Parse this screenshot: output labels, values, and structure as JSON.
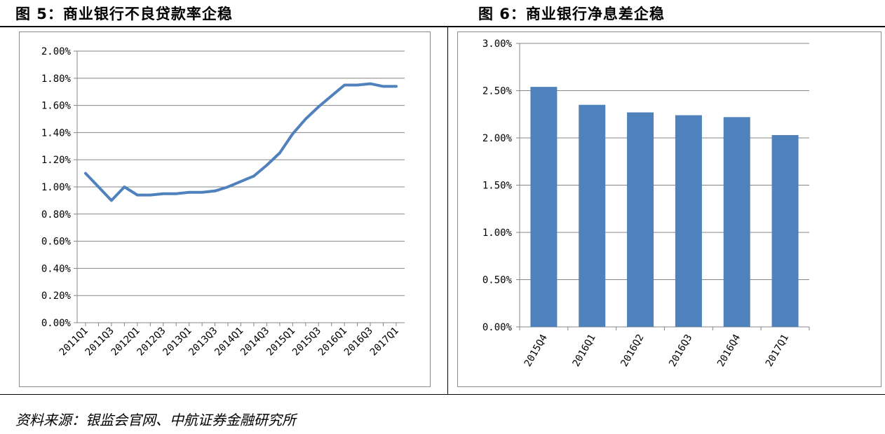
{
  "figures": [
    {
      "title": "图 5：商业银行不良贷款率企稳"
    },
    {
      "title": "图 6：商业银行净息差企稳"
    }
  ],
  "source_note": "资料来源：银监会官网、中航证券金融研究所",
  "colors": {
    "series": "#4f81bd",
    "grid": "#858585",
    "axis": "#858585"
  },
  "chart_data": [
    {
      "type": "line",
      "title": "图 5：商业银行不良贷款率企稳",
      "xlabel": "",
      "ylabel": "",
      "x": [
        "2011Q1",
        "2011Q2",
        "2011Q3",
        "2011Q4",
        "2012Q1",
        "2012Q2",
        "2012Q3",
        "2012Q4",
        "2013Q1",
        "2013Q2",
        "2013Q3",
        "2013Q4",
        "2014Q1",
        "2014Q2",
        "2014Q3",
        "2014Q4",
        "2015Q1",
        "2015Q2",
        "2015Q3",
        "2015Q4",
        "2016Q1",
        "2016Q2",
        "2016Q3",
        "2016Q4",
        "2017Q1"
      ],
      "tick_labels": [
        "2011Q1",
        "2011Q3",
        "2012Q1",
        "2012Q3",
        "2013Q1",
        "2013Q3",
        "2014Q1",
        "2014Q3",
        "2015Q1",
        "2015Q3",
        "2016Q1",
        "2016Q3",
        "2017Q1"
      ],
      "series": [
        {
          "values": [
            1.1,
            1.0,
            0.9,
            1.0,
            0.94,
            0.94,
            0.95,
            0.95,
            0.96,
            0.96,
            0.97,
            1.0,
            1.04,
            1.08,
            1.16,
            1.25,
            1.39,
            1.5,
            1.59,
            1.67,
            1.75,
            1.75,
            1.76,
            1.74,
            1.74
          ]
        }
      ],
      "ylim": [
        0,
        2.0
      ],
      "yticks": [
        "0.00%",
        "0.20%",
        "0.40%",
        "0.60%",
        "0.80%",
        "1.00%",
        "1.20%",
        "1.40%",
        "1.60%",
        "1.80%",
        "2.00%"
      ],
      "grid": true,
      "legend": "none"
    },
    {
      "type": "bar",
      "title": "图 6：商业银行净息差企稳",
      "xlabel": "",
      "ylabel": "",
      "categories": [
        "2015Q4",
        "2016Q1",
        "2016Q2",
        "2016Q3",
        "2016Q4",
        "2017Q1"
      ],
      "values": [
        2.54,
        2.35,
        2.27,
        2.24,
        2.22,
        2.03
      ],
      "ylim": [
        0,
        3.0
      ],
      "yticks": [
        "0.00%",
        "0.50%",
        "1.00%",
        "1.50%",
        "2.00%",
        "2.50%",
        "3.00%"
      ],
      "grid": true,
      "legend": "none"
    }
  ]
}
